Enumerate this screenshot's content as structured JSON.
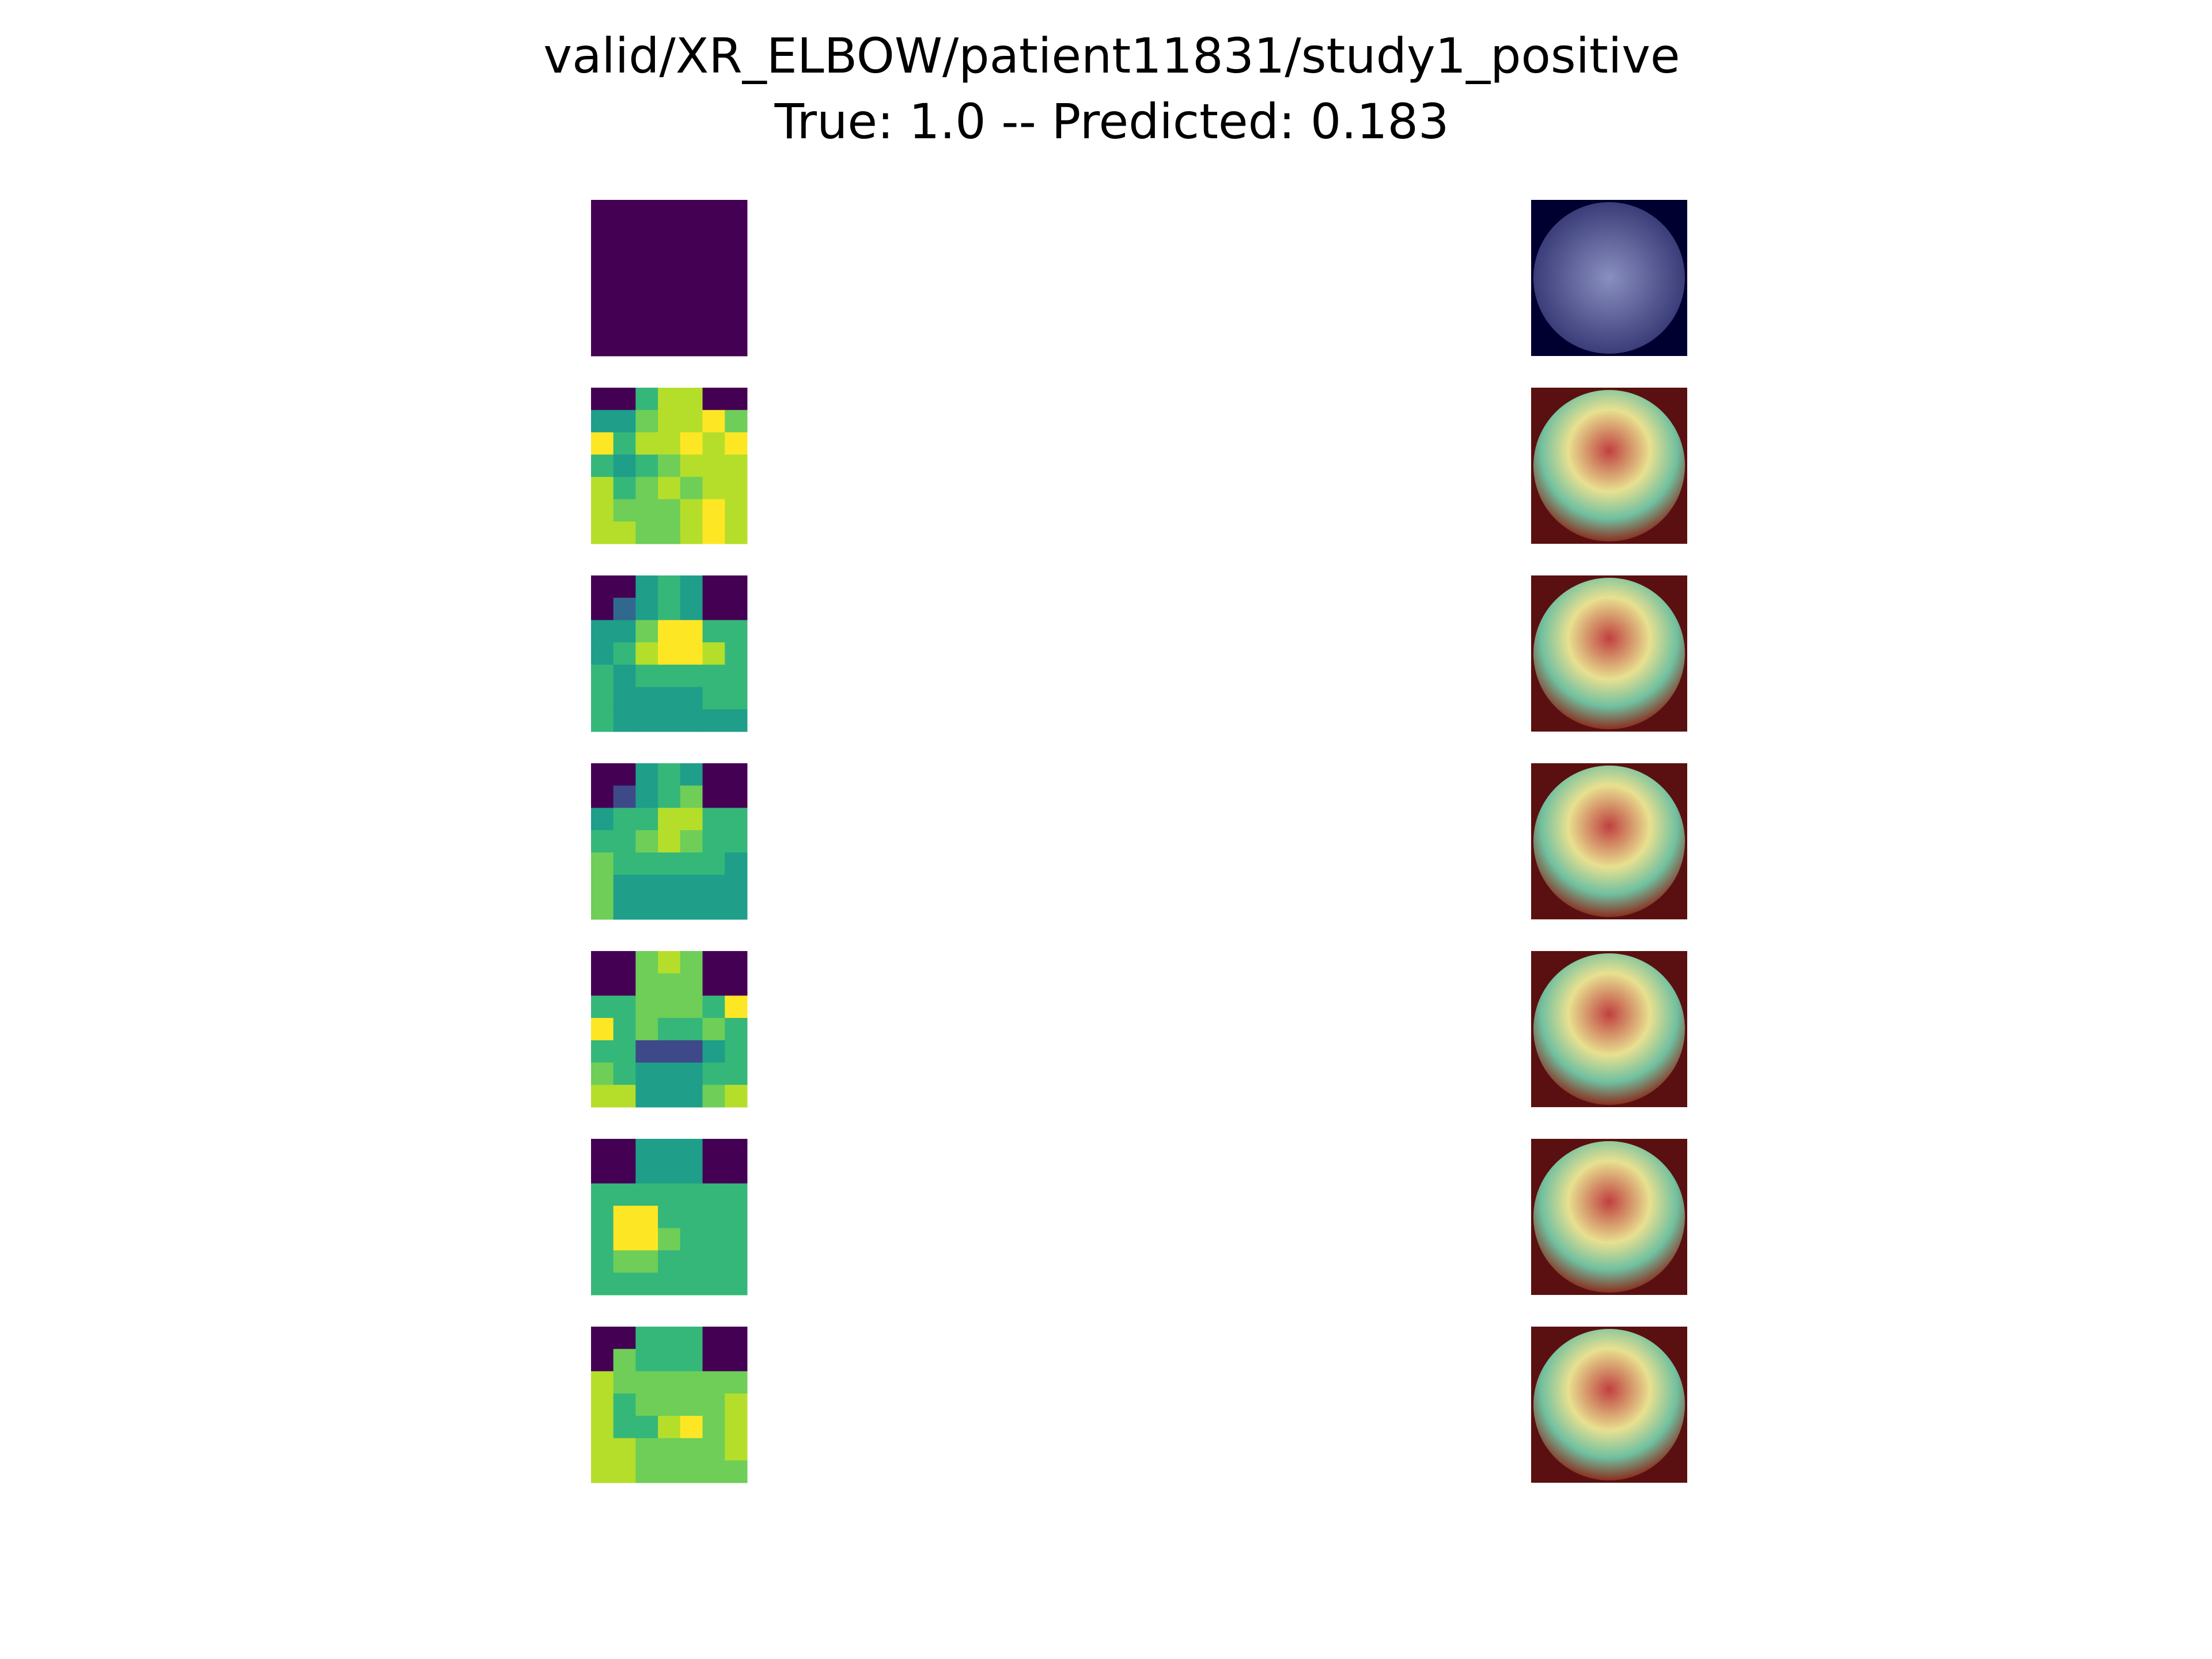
{
  "title": "valid/XR_ELBOW/patient11831/study1_positive",
  "subtitle": "True: 1.0 -- Predicted: 0.183"
}
